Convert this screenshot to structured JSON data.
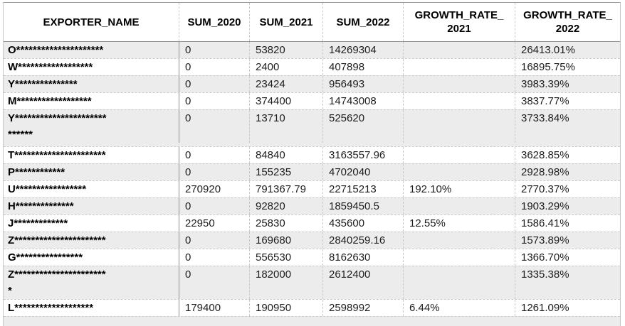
{
  "colors": {
    "stripe_row": "#ececec",
    "grid_dashed": "#c9c9c9",
    "grid_solid": "#8f8f8f",
    "text": "#1d1d1d"
  },
  "table": {
    "columns": [
      "EXPORTER_NAME",
      "SUM_2020",
      "SUM_2021",
      "SUM_2022",
      "GROWTH_RATE_\n2021",
      "GROWTH_RATE_\n2022"
    ],
    "rows": [
      {
        "name": "O*********************",
        "sum_2020": "0",
        "sum_2021": "53820",
        "sum_2022": "14269304",
        "growth_2021": "",
        "growth_2022": "26413.01%"
      },
      {
        "name": "W******************",
        "sum_2020": "0",
        "sum_2021": "2400",
        "sum_2022": "407898",
        "growth_2021": "",
        "growth_2022": "16895.75%"
      },
      {
        "name": "Y***************",
        "sum_2020": "0",
        "sum_2021": "23424",
        "sum_2022": "956493",
        "growth_2021": "",
        "growth_2022": "3983.39%"
      },
      {
        "name": "M******************",
        "sum_2020": "0",
        "sum_2021": "374400",
        "sum_2022": "14743008",
        "growth_2021": "",
        "growth_2022": "3837.77%"
      },
      {
        "name": "Y**********************\n******",
        "sum_2020": "0",
        "sum_2021": "13710",
        "sum_2022": "525620",
        "growth_2021": "",
        "growth_2022": "3733.84%"
      },
      {
        "name": "T**********************",
        "sum_2020": "0",
        "sum_2021": "84840",
        "sum_2022": "3163557.96",
        "growth_2021": "",
        "growth_2022": "3628.85%"
      },
      {
        "name": "P************",
        "sum_2020": "0",
        "sum_2021": "155235",
        "sum_2022": "4702040",
        "growth_2021": "",
        "growth_2022": "2928.98%"
      },
      {
        "name": "U*****************",
        "sum_2020": "270920",
        "sum_2021": "791367.79",
        "sum_2022": "22715213",
        "growth_2021": "192.10%",
        "growth_2022": "2770.37%"
      },
      {
        "name": "H**************",
        "sum_2020": "0",
        "sum_2021": "92820",
        "sum_2022": "1859450.5",
        "growth_2021": "",
        "growth_2022": "1903.29%"
      },
      {
        "name": "J*************",
        "sum_2020": "22950",
        "sum_2021": "25830",
        "sum_2022": "435600",
        "growth_2021": "12.55%",
        "growth_2022": "1586.41%"
      },
      {
        "name": "Z**********************",
        "sum_2020": "0",
        "sum_2021": "169680",
        "sum_2022": "2840259.16",
        "growth_2021": "",
        "growth_2022": "1573.89%"
      },
      {
        "name": "G****************",
        "sum_2020": "0",
        "sum_2021": "556530",
        "sum_2022": "8162630",
        "growth_2021": "",
        "growth_2022": "1366.70%"
      },
      {
        "name": "Z**********************\n*",
        "sum_2020": "0",
        "sum_2021": "182000",
        "sum_2022": "2612400",
        "growth_2021": "",
        "growth_2022": "1335.38%"
      },
      {
        "name": "L*******************",
        "sum_2020": "179400",
        "sum_2021": "190950",
        "sum_2022": "2598992",
        "growth_2021": "6.44%",
        "growth_2022": "1261.09%"
      }
    ]
  }
}
